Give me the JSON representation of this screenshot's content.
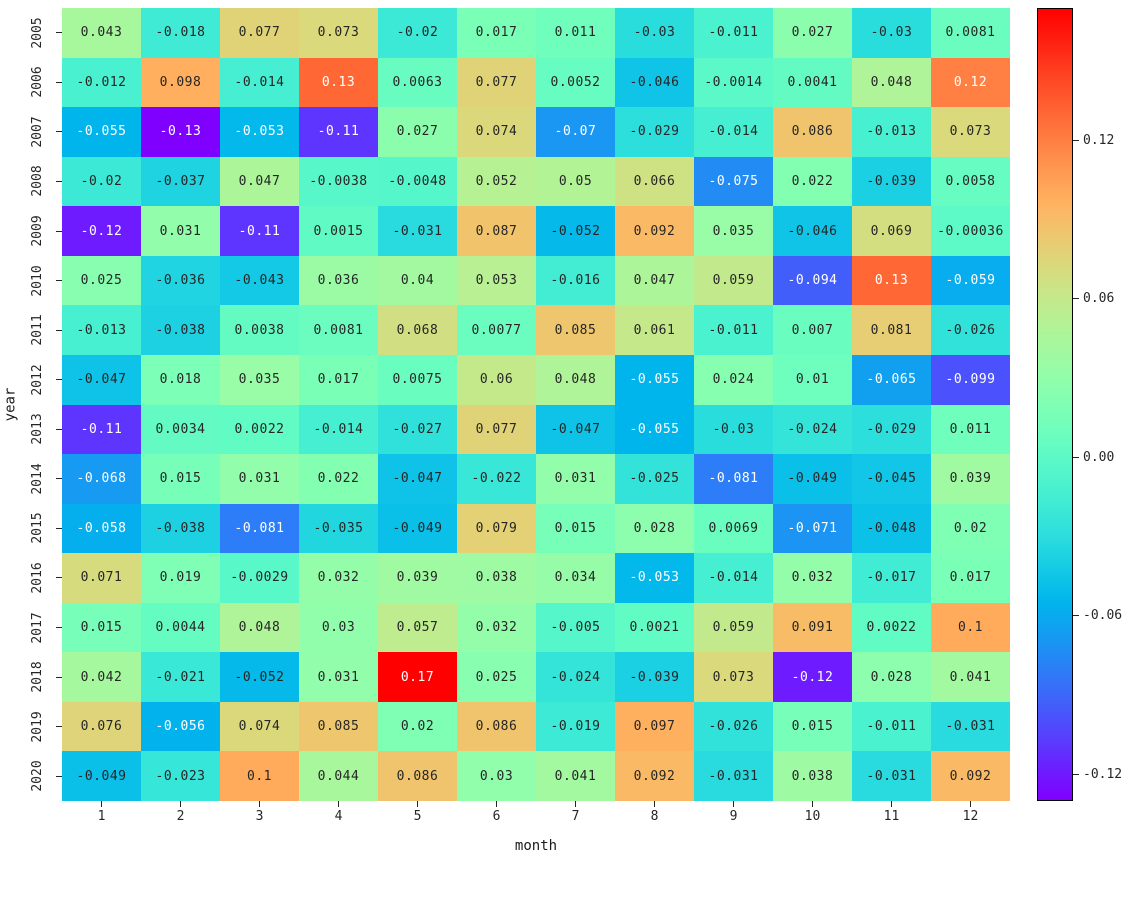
{
  "chart_data": {
    "type": "heatmap",
    "title": "",
    "xlabel": "month",
    "ylabel": "year",
    "x_ticks": [
      "1",
      "2",
      "3",
      "4",
      "5",
      "6",
      "7",
      "8",
      "9",
      "10",
      "11",
      "12"
    ],
    "y_ticks": [
      "2005",
      "2006",
      "2007",
      "2008",
      "2009",
      "2010",
      "2011",
      "2012",
      "2013",
      "2014",
      "2015",
      "2016",
      "2017",
      "2018",
      "2019",
      "2020"
    ],
    "vmin": -0.13,
    "vmax": 0.17,
    "colormap": "rainbow",
    "annotation_format": ".2g",
    "colorbar_ticks": [
      "0.12",
      "0.06",
      "0.00",
      "-0.06",
      "-0.12"
    ],
    "legend_position": "right-colorbar",
    "grid": false,
    "values": [
      [
        0.043,
        -0.018,
        0.077,
        0.073,
        -0.02,
        0.017,
        0.011,
        -0.03,
        -0.011,
        0.027,
        -0.03,
        0.0081
      ],
      [
        -0.012,
        0.098,
        -0.014,
        0.13,
        0.0063,
        0.077,
        0.0052,
        -0.046,
        -0.0014,
        0.0041,
        0.048,
        0.12
      ],
      [
        -0.055,
        -0.13,
        -0.053,
        -0.11,
        0.027,
        0.074,
        -0.07,
        -0.029,
        -0.014,
        0.086,
        -0.013,
        0.073
      ],
      [
        -0.02,
        -0.037,
        0.047,
        -0.0038,
        -0.0048,
        0.052,
        0.05,
        0.066,
        -0.075,
        0.022,
        -0.039,
        0.0058
      ],
      [
        -0.12,
        0.031,
        -0.11,
        0.0015,
        -0.031,
        0.087,
        -0.052,
        0.092,
        0.035,
        -0.046,
        0.069,
        -0.00036
      ],
      [
        0.025,
        -0.036,
        -0.043,
        0.036,
        0.04,
        0.053,
        -0.016,
        0.047,
        0.059,
        -0.094,
        0.13,
        -0.059
      ],
      [
        -0.013,
        -0.038,
        0.0038,
        0.0081,
        0.068,
        0.0077,
        0.085,
        0.061,
        -0.011,
        0.007,
        0.081,
        -0.026
      ],
      [
        -0.047,
        0.018,
        0.035,
        0.017,
        0.0075,
        0.06,
        0.048,
        -0.055,
        0.024,
        0.01,
        -0.065,
        -0.099
      ],
      [
        -0.11,
        0.0034,
        0.0022,
        -0.014,
        -0.027,
        0.077,
        -0.047,
        -0.055,
        -0.03,
        -0.024,
        -0.029,
        0.011
      ],
      [
        -0.068,
        0.015,
        0.031,
        0.022,
        -0.047,
        -0.022,
        0.031,
        -0.025,
        -0.081,
        -0.049,
        -0.045,
        0.039
      ],
      [
        -0.058,
        -0.038,
        -0.081,
        -0.035,
        -0.049,
        0.079,
        0.015,
        0.028,
        0.0069,
        -0.071,
        -0.048,
        0.02
      ],
      [
        0.071,
        0.019,
        -0.0029,
        0.032,
        0.039,
        0.038,
        0.034,
        -0.053,
        -0.014,
        0.032,
        -0.017,
        0.017
      ],
      [
        0.015,
        0.0044,
        0.048,
        0.03,
        0.057,
        0.032,
        -0.005,
        0.0021,
        0.059,
        0.091,
        0.0022,
        0.1
      ],
      [
        0.042,
        -0.021,
        -0.052,
        0.031,
        0.17,
        0.025,
        -0.024,
        -0.039,
        0.073,
        -0.12,
        0.028,
        0.041
      ],
      [
        0.076,
        -0.056,
        0.074,
        0.085,
        0.02,
        0.086,
        -0.019,
        0.097,
        -0.026,
        0.015,
        -0.011,
        -0.031
      ],
      [
        -0.049,
        -0.023,
        0.1,
        0.044,
        0.086,
        0.03,
        0.041,
        0.092,
        -0.031,
        0.038,
        -0.031,
        0.092
      ]
    ]
  }
}
